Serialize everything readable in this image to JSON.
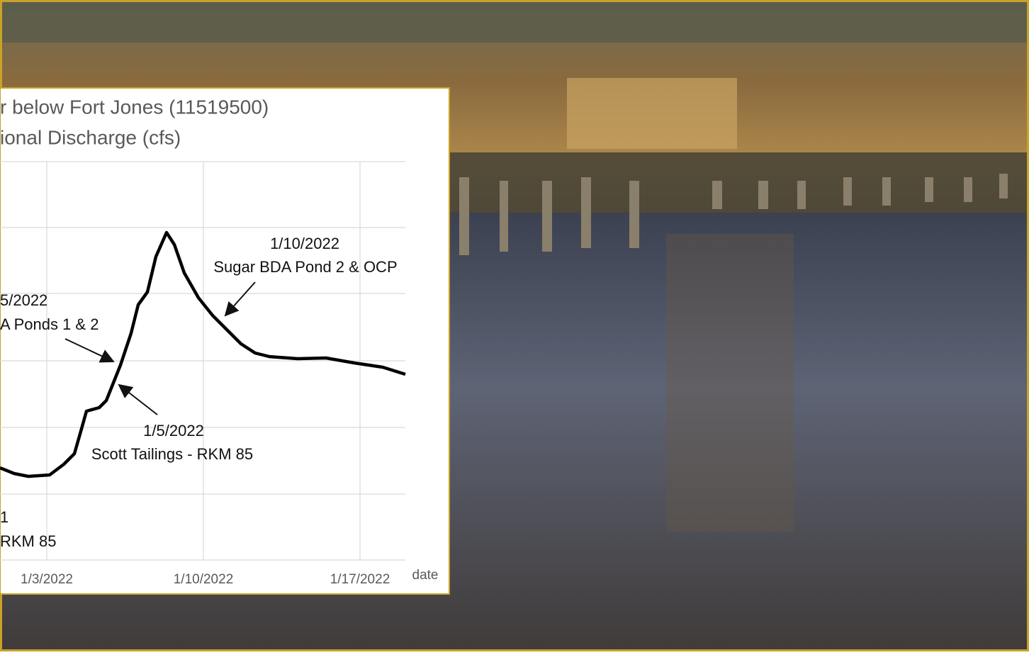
{
  "chart": {
    "title_lines": [
      "r below Fort Jones (11519500)",
      "ional Discharge (cfs)"
    ],
    "x_tick_labels": [
      "1/3/2022",
      "1/10/2022",
      "1/17/2022"
    ],
    "x_axis_label": "date",
    "annotations": [
      {
        "lines": [
          "1/10/2022",
          "Sugar BDA Pond 2 & OCP"
        ]
      },
      {
        "lines": [
          "5/2022",
          "A Ponds 1 & 2"
        ]
      },
      {
        "lines": [
          "1/5/2022",
          "Scott Tailings - RKM 85"
        ]
      },
      {
        "lines": [
          "1",
          "RKM 85"
        ]
      }
    ]
  }
}
